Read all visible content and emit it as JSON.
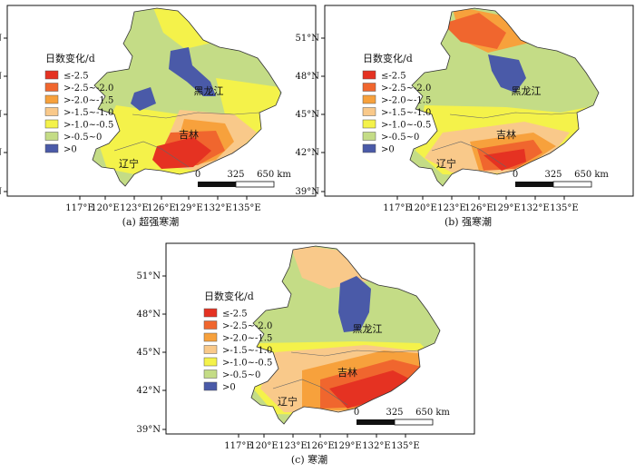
{
  "legend": {
    "title": "日数变化/d",
    "classes": [
      {
        "label": "≤-2.5",
        "color": "#e53222"
      },
      {
        "label": ">-2.5~-2.0",
        "color": "#f0662e"
      },
      {
        "label": ">-2.0~-1.5",
        "color": "#f7a13c"
      },
      {
        "label": ">-1.5~-1.0",
        "color": "#f9c98a"
      },
      {
        "label": ">-1.0~-0.5",
        "color": "#f4f24a"
      },
      {
        "label": ">-0.5~0",
        "color": "#c4dc86"
      },
      {
        "label": ">0",
        "color": "#4a5aa8"
      }
    ]
  },
  "axes": {
    "lat_ticks": [
      "51°N",
      "48°N",
      "45°N",
      "42°N",
      "39°N"
    ],
    "lon_ticks": [
      "117°E",
      "120°E",
      "123°E",
      "126°E",
      "129°E",
      "132°E",
      "135°E"
    ]
  },
  "scale_bar": {
    "labels": [
      "0",
      "325",
      "650 km"
    ]
  },
  "provinces": {
    "heilongjiang": "黑龙江",
    "jilin": "吉林",
    "liaoning": "辽宁"
  },
  "panels": [
    {
      "id": "a",
      "caption": "(a) 超强寒潮"
    },
    {
      "id": "b",
      "caption": "(b) 强寒潮"
    },
    {
      "id": "c",
      "caption": "(c) 寒潮"
    }
  ]
}
